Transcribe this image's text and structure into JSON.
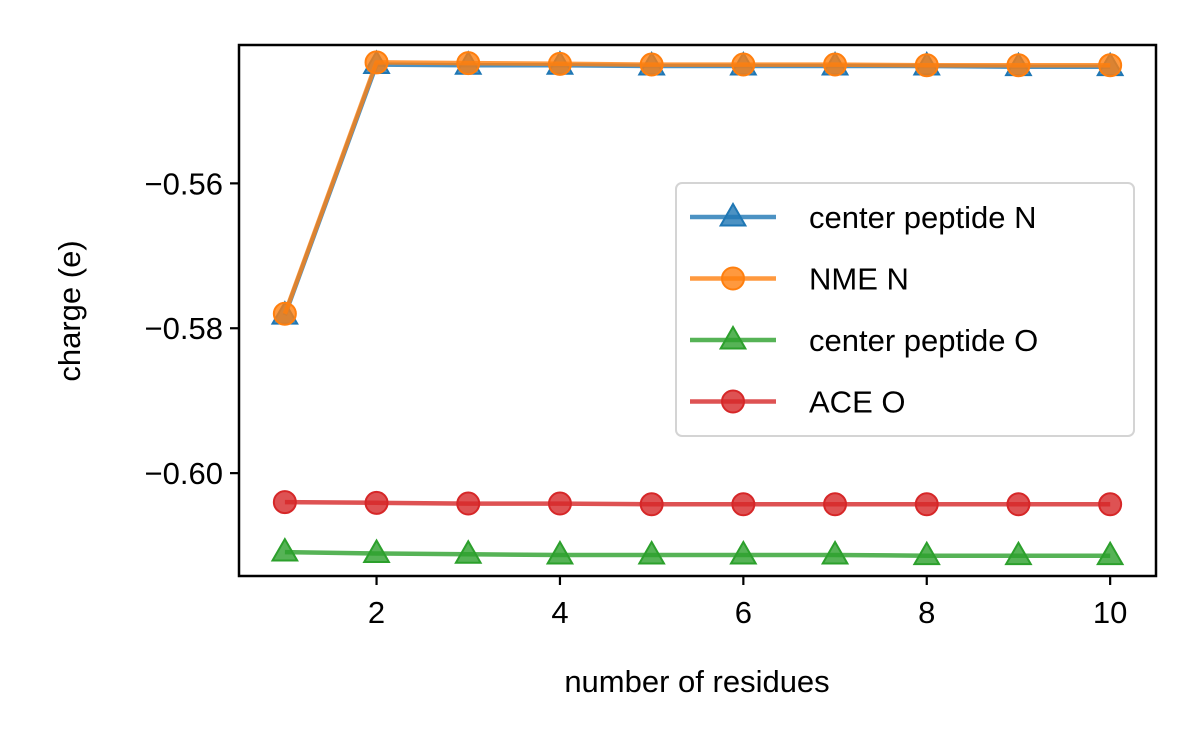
{
  "chart_data": {
    "type": "line",
    "title": "",
    "xlabel": "number of residues",
    "ylabel": "charge (e)",
    "x": [
      1,
      2,
      3,
      4,
      5,
      6,
      7,
      8,
      9,
      10
    ],
    "xlim": [
      0.5,
      10.5
    ],
    "ylim": [
      -0.6142,
      -0.5409
    ],
    "xticks": [
      2,
      4,
      6,
      8,
      10
    ],
    "xtick_labels": [
      "2",
      "4",
      "6",
      "8",
      "10"
    ],
    "yticks": [
      -0.56,
      -0.58,
      -0.6
    ],
    "ytick_labels": [
      "−0.56",
      "−0.58",
      "−0.60"
    ],
    "grid": false,
    "legend_position": "center-right",
    "series": [
      {
        "name": "center peptide N",
        "marker": "triangle",
        "color": "#1f77b4",
        "values": [
          -0.5782,
          -0.5436,
          -0.5437,
          -0.5437,
          -0.5438,
          -0.5438,
          -0.5438,
          -0.5438,
          -0.5439,
          -0.5439
        ]
      },
      {
        "name": "NME N",
        "marker": "circle",
        "color": "#ff7f0e",
        "values": [
          -0.578,
          -0.5433,
          -0.5434,
          -0.5435,
          -0.5436,
          -0.5436,
          -0.5436,
          -0.5437,
          -0.5437,
          -0.5437
        ]
      },
      {
        "name": "center peptide O",
        "marker": "triangle",
        "color": "#2ca02c",
        "values": [
          -0.6109,
          -0.6111,
          -0.6112,
          -0.6113,
          -0.6113,
          -0.6113,
          -0.6113,
          -0.6114,
          -0.6114,
          -0.6114
        ]
      },
      {
        "name": "ACE O",
        "marker": "circle",
        "color": "#d62728",
        "values": [
          -0.604,
          -0.6041,
          -0.6042,
          -0.6042,
          -0.6043,
          -0.6043,
          -0.6043,
          -0.6043,
          -0.6043,
          -0.6043
        ]
      }
    ]
  }
}
